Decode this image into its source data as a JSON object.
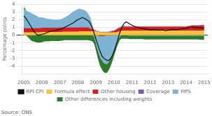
{
  "chart_data": {
    "type": "area",
    "stacked": true,
    "ylabel": "Percentage points",
    "source": "Source: ONS",
    "xlim": [
      2004.9,
      2015.2
    ],
    "xticks": [
      2005,
      2006,
      2007,
      2008,
      2009,
      2010,
      2011,
      2012,
      2013,
      2014,
      2015
    ],
    "ylim": [
      -5,
      4
    ],
    "yticks": [
      -4,
      -3,
      -2,
      -1,
      0,
      1,
      2,
      3,
      4
    ],
    "grid": "y",
    "legend": "bottom",
    "x": [
      2005,
      2005.0833333333333,
      2005.1666666666667,
      2005.25,
      2005.3333333333333,
      2005.4166666666667,
      2005.5,
      2005.5833333333333,
      2005.6666666666667,
      2005.75,
      2005.8333333333333,
      2005.9166666666667,
      2006,
      2006.0833333333333,
      2006.1666666666667,
      2006.25,
      2006.3333333333333,
      2006.4166666666667,
      2006.5,
      2006.5833333333333,
      2006.6666666666667,
      2006.75,
      2006.8333333333333,
      2006.9166666666667,
      2007,
      2007.0833333333333,
      2007.1666666666667,
      2007.25,
      2007.3333333333333,
      2007.4166666666667,
      2007.5,
      2007.5833333333333,
      2007.6666666666667,
      2007.75,
      2007.8333333333333,
      2007.9166666666667,
      2008,
      2008.0833333333333,
      2008.1666666666667,
      2008.25,
      2008.3333333333333,
      2008.4166666666667,
      2008.5,
      2008.5833333333333,
      2008.6666666666667,
      2008.75,
      2008.8333333333333,
      2008.9166666666667,
      2009,
      2009.0833333333333,
      2009.1666666666667,
      2009.25,
      2009.3333333333333,
      2009.4166666666667,
      2009.5,
      2009.5833333333333,
      2009.6666666666667,
      2009.75,
      2009.8333333333333,
      2009.9166666666667,
      2010,
      2010.0833333333333,
      2010.1666666666667,
      2010.25,
      2010.3333333333333,
      2010.4166666666667,
      2010.5,
      2010.5833333333333,
      2010.6666666666667,
      2010.75,
      2010.8333333333333,
      2010.9166666666667,
      2011,
      2011.0833333333333,
      2011.1666666666667,
      2011.25,
      2011.3333333333333,
      2011.4166666666667,
      2011.5,
      2011.5833333333333,
      2011.6666666666667,
      2011.75,
      2011.8333333333333,
      2011.9166666666667,
      2012,
      2012.0833333333333,
      2012.1666666666667,
      2012.25,
      2012.3333333333333,
      2012.4166666666667,
      2012.5,
      2012.5833333333333,
      2012.6666666666667,
      2012.75,
      2012.8333333333333,
      2012.9166666666667,
      2013,
      2013.0833333333333,
      2013.1666666666667,
      2013.25,
      2013.3333333333333,
      2013.4166666666667,
      2013.5,
      2013.5833333333333,
      2013.6666666666667,
      2013.75,
      2013.8333333333333,
      2013.9166666666667,
      2014,
      2014.0833333333333,
      2014.1666666666667,
      2014.25,
      2014.3333333333333,
      2014.4166666666667,
      2014.5,
      2014.5833333333333,
      2014.6666666666667,
      2014.75,
      2014.8333333333333,
      2014.9166666666667,
      2015
    ],
    "series": [
      {
        "name": "Formula effect",
        "type": "area",
        "color": "#f5c242",
        "values": [
          0.35,
          0.35,
          0.35,
          0.35,
          0.35,
          0.35,
          0.35,
          0.35,
          0.35,
          0.35,
          0.35,
          0.35,
          0.4,
          0.4,
          0.4,
          0.4,
          0.4,
          0.4,
          0.4,
          0.4,
          0.4,
          0.4,
          0.4,
          0.4,
          0.4,
          0.4,
          0.45,
          0.45,
          0.45,
          0.45,
          0.45,
          0.45,
          0.45,
          0.45,
          0.45,
          0.45,
          0.45,
          0.5,
          0.5,
          0.5,
          0.5,
          0.5,
          0.5,
          0.5,
          0.5,
          0.5,
          0.5,
          0.5,
          0.5,
          0.45,
          0.4,
          0.35,
          0.35,
          0.35,
          0.35,
          0.35,
          0.35,
          0.35,
          0.35,
          0.35,
          0.35,
          0.35,
          0.4,
          0.45,
          0.5,
          0.55,
          0.6,
          0.6,
          0.6,
          0.6,
          0.6,
          0.6,
          0.6,
          0.6,
          0.6,
          0.6,
          0.6,
          0.6,
          0.6,
          0.6,
          0.6,
          0.6,
          0.6,
          0.6,
          0.6,
          0.6,
          0.6,
          0.6,
          0.6,
          0.6,
          0.6,
          0.6,
          0.6,
          0.6,
          0.6,
          0.6,
          0.6,
          0.6,
          0.6,
          0.6,
          0.6,
          0.6,
          0.6,
          0.6,
          0.6,
          0.6,
          0.6,
          0.6,
          0.6,
          0.6,
          0.6,
          0.6,
          0.6,
          0.6,
          0.6,
          0.6,
          0.6,
          0.6,
          0.6,
          0.6,
          0.6
        ]
      },
      {
        "name": "Other housing",
        "type": "area",
        "color": "#cc2222",
        "values": [
          0.55,
          0.55,
          0.55,
          0.55,
          0.55,
          0.55,
          0.55,
          0.55,
          0.55,
          0.55,
          0.55,
          0.55,
          0.55,
          0.55,
          0.55,
          0.55,
          0.55,
          0.55,
          0.55,
          0.55,
          0.55,
          0.55,
          0.55,
          0.55,
          0.55,
          0.55,
          0.55,
          0.55,
          0.55,
          0.55,
          0.55,
          0.55,
          0.55,
          0.55,
          0.55,
          0.55,
          0.55,
          0.5,
          0.5,
          0.5,
          0.5,
          0.5,
          0.5,
          0.45,
          0.4,
          0.3,
          0.2,
          0.1,
          0.05,
          -0.05,
          -0.1,
          -0.15,
          -0.15,
          -0.15,
          -0.1,
          -0.05,
          0.0,
          0.05,
          0.1,
          0.15,
          0.2,
          0.3,
          0.4,
          0.45,
          0.5,
          0.5,
          0.5,
          0.5,
          0.5,
          0.5,
          0.5,
          0.5,
          0.5,
          0.5,
          0.5,
          0.5,
          0.5,
          0.5,
          0.5,
          0.5,
          0.5,
          0.5,
          0.5,
          0.5,
          0.5,
          0.5,
          0.5,
          0.5,
          0.5,
          0.5,
          0.5,
          0.5,
          0.5,
          0.5,
          0.5,
          0.5,
          0.5,
          0.5,
          0.5,
          0.5,
          0.5,
          0.5,
          0.5,
          0.5,
          0.5,
          0.5,
          0.5,
          0.5,
          0.5,
          0.55,
          0.55,
          0.6,
          0.65,
          0.65,
          0.65,
          0.65,
          0.65,
          0.65,
          0.7,
          0.7,
          0.7
        ]
      },
      {
        "name": "Coverage",
        "type": "area",
        "color": "#7b5ea7",
        "values": [
          0.06,
          0.06,
          0.06,
          0.06,
          0.06,
          0.06,
          0.06,
          0.06,
          0.06,
          0.06,
          0.06,
          0.06,
          0.06,
          0.06,
          0.06,
          0.06,
          0.06,
          0.06,
          0.06,
          0.06,
          0.06,
          0.06,
          0.06,
          0.06,
          0.08,
          0.08,
          0.08,
          0.08,
          0.08,
          0.08,
          0.08,
          0.08,
          0.08,
          0.08,
          0.08,
          0.08,
          0.08,
          0.08,
          0.08,
          0.08,
          0.08,
          0.08,
          0.08,
          0.08,
          0.08,
          0.08,
          0.08,
          0.08,
          0.08,
          0.08,
          0.08,
          0.08,
          0.08,
          0.08,
          0.08,
          0.08,
          0.08,
          0.08,
          0.08,
          0.08,
          0.05,
          0.05,
          0.05,
          0.05,
          0.05,
          0.05,
          0.05,
          0.05,
          0.05,
          0.05,
          0.05,
          0.05,
          0.05,
          0.05,
          0.05,
          0.05,
          0.05,
          0.05,
          0.05,
          0.05,
          0.05,
          0.05,
          0.05,
          0.05,
          0.05,
          0.05,
          0.05,
          0.05,
          0.05,
          0.05,
          0.05,
          0.05,
          0.05,
          0.05,
          0.05,
          0.05,
          0.05,
          0.05,
          0.05,
          0.05,
          0.05,
          0.05,
          0.05,
          0.05,
          0.05,
          0.05,
          0.05,
          0.05,
          0.05,
          0.05,
          0.05,
          0.05,
          0.05,
          0.05,
          0.05,
          0.05,
          0.05,
          0.05,
          0.05,
          0.05,
          0.05
        ]
      },
      {
        "name": "MPS",
        "type": "area",
        "color": "#7fb3d3",
        "values": [
          2.4,
          2.3,
          2.2,
          2.1,
          2.0,
          1.9,
          1.8,
          1.7,
          1.6,
          1.5,
          1.4,
          1.35,
          1.3,
          1.25,
          1.2,
          1.15,
          1.1,
          1.1,
          1.05,
          1.05,
          1.0,
          1.0,
          1.0,
          1.0,
          1.0,
          1.05,
          1.1,
          1.2,
          1.3,
          1.4,
          1.55,
          1.7,
          1.85,
          2.0,
          2.1,
          2.2,
          2.3,
          2.35,
          2.3,
          2.25,
          2.2,
          2.1,
          1.9,
          1.7,
          1.4,
          0.9,
          0.3,
          -0.3,
          -1.0,
          -1.7,
          -2.3,
          -2.8,
          -3.1,
          -3.4,
          -3.6,
          -3.7,
          -3.6,
          -3.3,
          -2.9,
          -2.4,
          -1.8,
          -1.3,
          -0.8,
          -0.4,
          -0.1,
          0.1,
          0.15,
          0.1,
          0.05,
          0.0,
          -0.05,
          -0.05,
          -0.05,
          -0.05,
          -0.05,
          -0.05,
          -0.05,
          -0.05,
          -0.05,
          -0.05,
          -0.05,
          -0.05,
          -0.05,
          -0.05,
          -0.05,
          -0.05,
          -0.05,
          -0.05,
          -0.05,
          -0.05,
          -0.05,
          -0.05,
          -0.05,
          -0.05,
          -0.05,
          -0.05,
          -0.05,
          -0.05,
          -0.05,
          -0.05,
          -0.05,
          -0.05,
          -0.05,
          -0.05,
          -0.05,
          -0.05,
          -0.05,
          -0.05,
          -0.05,
          -0.05,
          -0.05,
          -0.05,
          -0.05,
          -0.05,
          -0.05,
          -0.05,
          -0.05,
          -0.05,
          -0.05,
          -0.05,
          -0.05
        ]
      },
      {
        "name": "Other differences including weights",
        "type": "area",
        "color": "#2d7a2d",
        "values": [
          0.3,
          0.1,
          -0.1,
          -0.3,
          -0.5,
          -0.7,
          -0.8,
          -0.85,
          -0.9,
          -0.95,
          -0.95,
          -0.95,
          -0.9,
          -0.85,
          -0.8,
          -0.8,
          -0.8,
          -0.8,
          -0.75,
          -0.75,
          -0.75,
          -0.75,
          -0.75,
          -0.75,
          -0.75,
          -0.7,
          -0.7,
          -0.65,
          -0.65,
          -0.65,
          -0.65,
          -0.65,
          -0.65,
          -0.65,
          -0.65,
          -0.65,
          -0.65,
          -0.65,
          -0.65,
          -0.65,
          -0.65,
          -0.65,
          -0.65,
          -0.65,
          -0.7,
          -0.75,
          -0.85,
          -0.95,
          -1.0,
          -1.05,
          -1.1,
          -1.15,
          -1.2,
          -1.2,
          -1.2,
          -1.15,
          -1.1,
          -1.05,
          -1.0,
          -0.95,
          -0.9,
          -0.8,
          -0.7,
          -0.6,
          -0.5,
          -0.45,
          -0.45,
          -0.45,
          -0.45,
          -0.45,
          -0.45,
          -0.45,
          -0.45,
          -0.45,
          -0.45,
          -0.45,
          -0.45,
          -0.45,
          -0.45,
          -0.45,
          -0.5,
          -0.5,
          -0.5,
          -0.5,
          -0.5,
          -0.5,
          -0.5,
          -0.5,
          -0.5,
          -0.5,
          -0.5,
          -0.5,
          -0.5,
          -0.5,
          -0.5,
          -0.5,
          -0.5,
          -0.5,
          -0.5,
          -0.5,
          -0.5,
          -0.5,
          -0.5,
          -0.5,
          -0.5,
          -0.5,
          -0.5,
          -0.5,
          -0.5,
          -0.5,
          -0.5,
          -0.5,
          -0.5,
          -0.5,
          -0.5,
          -0.5,
          -0.5,
          -0.55,
          -0.55,
          -0.55,
          -0.55
        ]
      },
      {
        "name": "RPI-CPI",
        "type": "line",
        "color": "#111111",
        "values": [
          2.5,
          2.3,
          2.0,
          1.7,
          1.4,
          1.1,
          0.7,
          0.4,
          0.2,
          0.05,
          0.0,
          0.05,
          0.1,
          0.15,
          0.2,
          0.3,
          0.4,
          0.45,
          0.5,
          0.55,
          0.6,
          0.6,
          0.65,
          0.7,
          0.75,
          0.8,
          0.9,
          1.0,
          1.1,
          1.2,
          1.3,
          1.4,
          1.5,
          1.6,
          1.75,
          1.9,
          2.0,
          2.1,
          2.2,
          2.3,
          2.2,
          2.1,
          2.0,
          1.85,
          1.6,
          1.2,
          0.7,
          0.1,
          -0.5,
          -1.1,
          -1.7,
          -2.2,
          -2.7,
          -2.95,
          -3.1,
          -3.2,
          -3.3,
          -3.2,
          -2.95,
          -2.6,
          -2.1,
          -1.5,
          -0.9,
          -0.2,
          0.4,
          0.9,
          1.3,
          1.6,
          1.7,
          1.65,
          1.5,
          1.4,
          1.3,
          1.2,
          1.1,
          1.05,
          1.0,
          0.95,
          0.9,
          0.9,
          0.85,
          0.8,
          0.75,
          0.75,
          0.7,
          0.65,
          0.7,
          0.75,
          0.7,
          0.65,
          0.65,
          0.7,
          0.7,
          0.65,
          0.6,
          0.6,
          0.65,
          0.65,
          0.7,
          0.75,
          0.75,
          0.7,
          0.7,
          0.75,
          0.8,
          0.8,
          0.85,
          0.9,
          0.9,
          0.95,
          1.0,
          1.05,
          1.05,
          1.0,
          1.0,
          1.0,
          1.0,
          0.95,
          0.95,
          0.9,
          0.95
        ]
      }
    ]
  }
}
